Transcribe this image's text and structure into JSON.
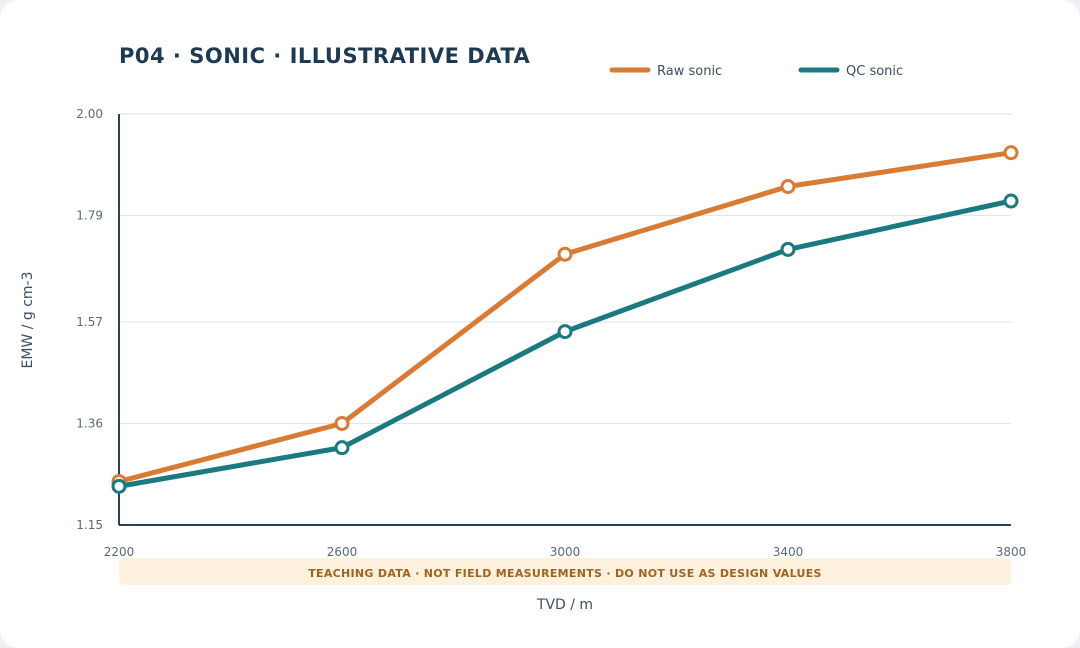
{
  "colors": {
    "raw": "#d97b34",
    "qc": "#1a7a80",
    "axis": "#2d4354",
    "grid": "#dfe6ec",
    "banner_bg": "#fdf0dc",
    "banner_text": "#a0641e",
    "title": "#1e3a52"
  },
  "chart_data": {
    "type": "line",
    "title": "P04 · SONIC · ILLUSTRATIVE DATA",
    "xlabel": "TVD / m",
    "ylabel": "EMW / g cm-3",
    "x": [
      2200,
      2600,
      3000,
      3400,
      3800
    ],
    "x_ticks": [
      "2200",
      "2600",
      "3000",
      "3400",
      "3800"
    ],
    "y_ticks": [
      "1.15",
      "1.36",
      "1.57",
      "1.79",
      "2.00"
    ],
    "y_tick_values": [
      1.15,
      1.36,
      1.57,
      1.79,
      2.0
    ],
    "xlim": [
      2200,
      3800
    ],
    "ylim": [
      1.15,
      2.0
    ],
    "grid": true,
    "legend_position": "top-right",
    "series": [
      {
        "name": "Raw sonic",
        "color_key": "raw",
        "values": [
          1.24,
          1.36,
          1.71,
          1.85,
          1.92
        ]
      },
      {
        "name": "QC sonic",
        "color_key": "qc",
        "values": [
          1.23,
          1.31,
          1.55,
          1.72,
          1.82
        ]
      }
    ],
    "banner": "TEACHING DATA · NOT FIELD MEASUREMENTS · DO NOT USE AS DESIGN VALUES"
  }
}
